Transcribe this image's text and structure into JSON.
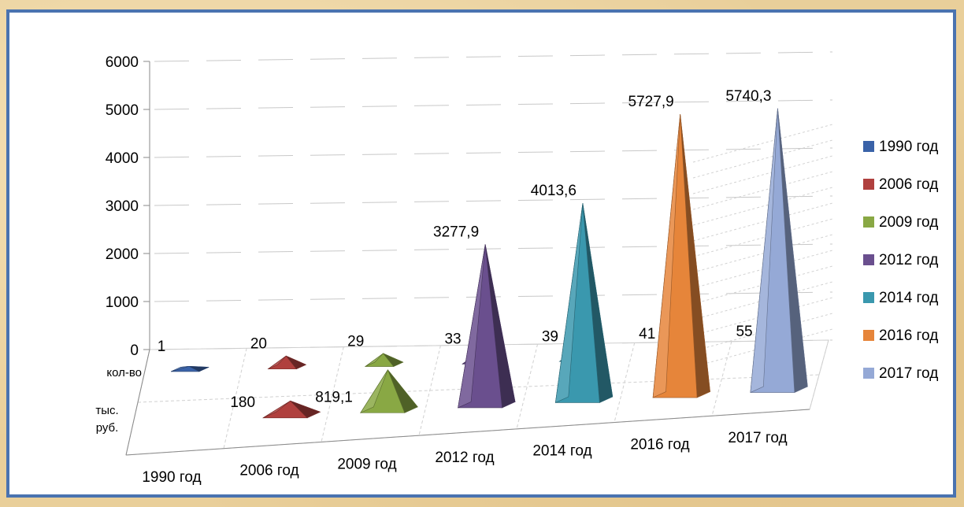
{
  "chart_data": {
    "type": "bar",
    "categories": [
      "1990 год",
      "2006 год",
      "2009 год",
      "2012 год",
      "2014 год",
      "2016 год",
      "2017 год"
    ],
    "series": [
      {
        "name": "тыс. руб.",
        "values": [
          null,
          180,
          819.1,
          3277.9,
          4013.6,
          5727.9,
          5740.3
        ]
      },
      {
        "name": "кол-во",
        "values": [
          1,
          20,
          29,
          33,
          39,
          41,
          55
        ]
      }
    ],
    "value_labels": {
      "thousand_rub": [
        "",
        "180",
        "819,1",
        "3277,9",
        "4013,6",
        "5727,9",
        "5740,3"
      ],
      "count": [
        "1",
        "20",
        "29",
        "33",
        "39",
        "41",
        "55"
      ]
    },
    "colors": [
      "#3a62a8",
      "#b0403e",
      "#89a844",
      "#6a4f8e",
      "#3a98ae",
      "#e6853a",
      "#95a9d6"
    ],
    "legend": [
      "1990 год",
      "2006 год",
      "2009 год",
      "2012 год",
      "2014 год",
      "2016 год",
      "2017 год"
    ],
    "legend_position": "right",
    "y_ticks": [
      "0",
      "1000",
      "2000",
      "3000",
      "4000",
      "5000",
      "6000"
    ],
    "ylim": [
      0,
      6000
    ],
    "grid": true
  }
}
